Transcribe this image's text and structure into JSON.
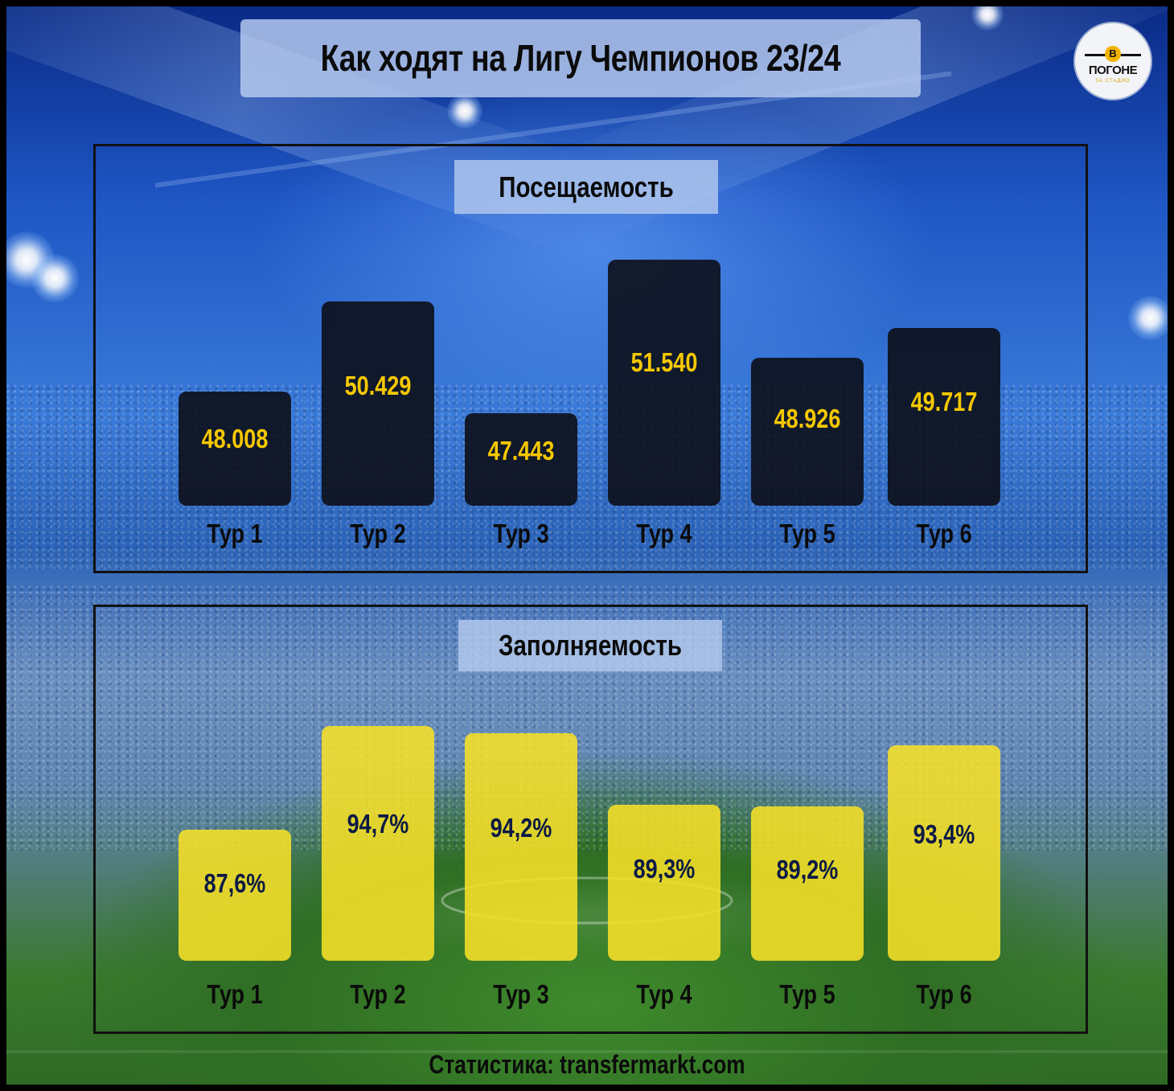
{
  "title": "Как ходят на Лигу Чемпионов 23/24",
  "logo": {
    "letter": "В",
    "name": "ПОГОНЕ",
    "sub": "ЗА СТАДИО"
  },
  "colors": {
    "dark_bar": "#0c0e18",
    "yellow_bar": "#f7e028",
    "dark_value": "#f5c800",
    "yellow_value": "#0c1a44",
    "background_top": "#0a2a86",
    "pitch": "#2f6e24"
  },
  "chart_data": [
    {
      "type": "bar",
      "title": "Посещаемость",
      "categories": [
        "Тур 1",
        "Тур 2",
        "Тур 3",
        "Тур 4",
        "Тур 5",
        "Тур 6"
      ],
      "values": [
        48008,
        50429,
        47443,
        51540,
        48926,
        49717
      ],
      "value_labels": [
        "48.008",
        "50.429",
        "47.443",
        "51.540",
        "48.926",
        "49.717"
      ],
      "bar_color": "dark",
      "ylim": [
        44960,
        51540
      ]
    },
    {
      "type": "bar",
      "title": "Заполняемость",
      "categories": [
        "Тур 1",
        "Тур 2",
        "Тур 3",
        "Тур 4",
        "Тур 5",
        "Тур 6"
      ],
      "values": [
        87.6,
        94.7,
        94.2,
        89.3,
        89.2,
        93.4
      ],
      "value_labels": [
        "87,6%",
        "94,7%",
        "94,2%",
        "89,3%",
        "89,2%",
        "93,4%"
      ],
      "bar_color": "yellow",
      "ylim": [
        78.6,
        94.7
      ]
    }
  ],
  "source": "Статистика: transfermarkt.com"
}
